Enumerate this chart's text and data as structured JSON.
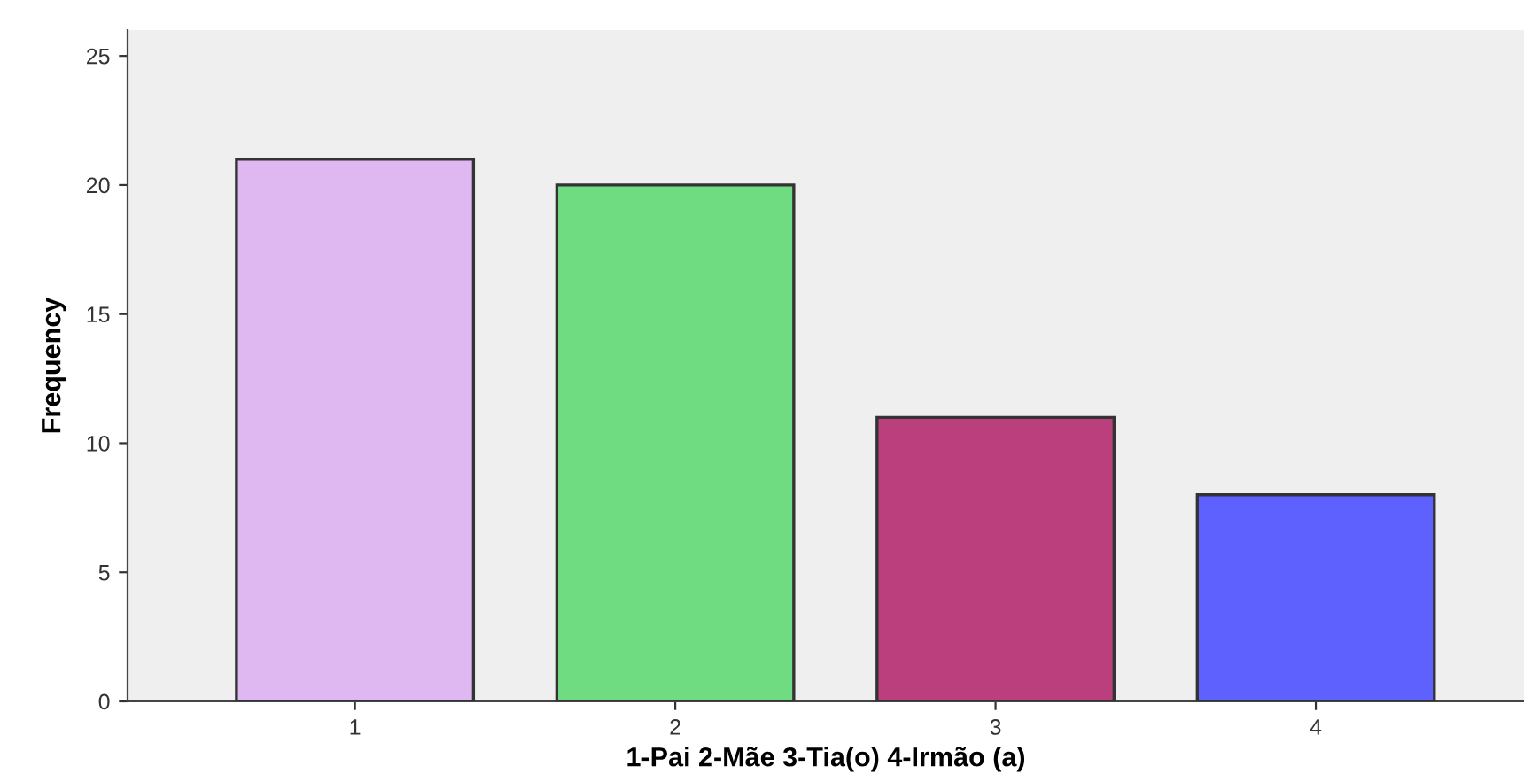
{
  "chart_data": {
    "type": "bar",
    "xlabel": "1-Pai 2-Mãe 3-Tia(o) 4-Irmão (a)",
    "ylabel": "Frequency",
    "categories": [
      "1",
      "2",
      "3",
      "4"
    ],
    "values": [
      21,
      20,
      11,
      8
    ],
    "colors": [
      "#dfb8f2",
      "#70dc82",
      "#bb3f7c",
      "#5f61ff"
    ],
    "ylim": [
      0,
      26
    ],
    "yticks": [
      0,
      5,
      10,
      15,
      20,
      25
    ],
    "grid": false,
    "legend": false
  }
}
